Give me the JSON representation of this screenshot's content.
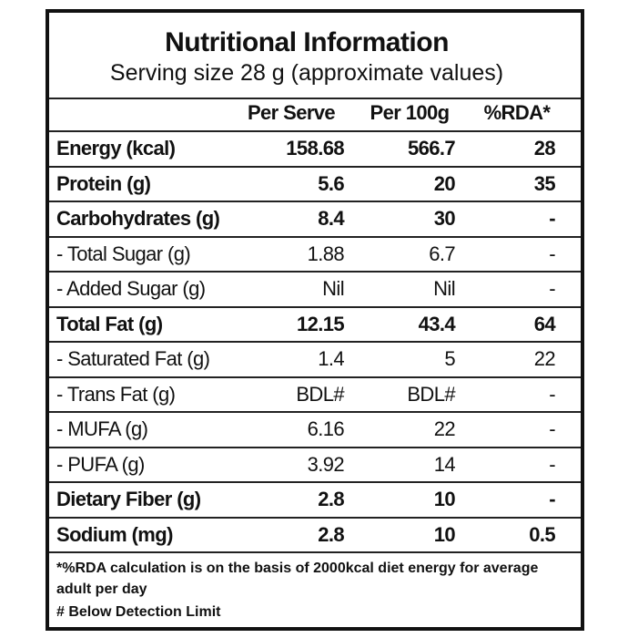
{
  "title": "Nutritional Information",
  "subtitle": "Serving size 28 g (approximate values)",
  "table": {
    "header": [
      "Per Serve",
      "Per 100g",
      "%RDA*"
    ],
    "rows": [
      [
        "Energy (kcal)",
        "158.68",
        "566.7",
        "28"
      ],
      [
        "Protein (g)",
        "5.6",
        "20",
        "35"
      ],
      [
        "Carbohydrates (g)",
        "8.4",
        "30",
        "-"
      ],
      [
        "- Total Sugar (g)",
        "1.88",
        "6.7",
        "-"
      ],
      [
        "- Added Sugar (g)",
        "Nil",
        "Nil",
        "-"
      ],
      [
        "Total Fat (g)",
        "12.15",
        "43.4",
        "64"
      ],
      [
        "- Saturated Fat (g)",
        "1.4",
        "5",
        "22"
      ],
      [
        "- Trans Fat (g)",
        "BDL#",
        "BDL#",
        "-"
      ],
      [
        "- MUFA (g)",
        "6.16",
        "22",
        "-"
      ],
      [
        "- PUFA (g)",
        "3.92",
        "14",
        "-"
      ],
      [
        "Dietary Fiber (g)",
        "2.8",
        "10",
        "-"
      ],
      [
        "Sodium (mg)",
        "2.8",
        "10",
        "0.5"
      ]
    ]
  },
  "footnotes": [
    "*%RDA calculation is on the basis of 2000kcal diet energy for average adult per day",
    "# Below Detection Limit"
  ]
}
